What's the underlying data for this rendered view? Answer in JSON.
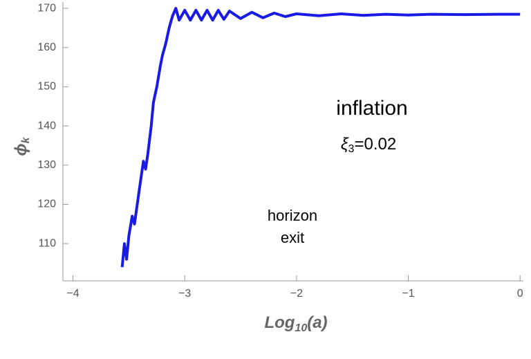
{
  "chart_data": {
    "type": "line",
    "x_label": [
      "Log",
      "10",
      "(a)"
    ],
    "y_label": [
      "ϕ",
      "k"
    ],
    "annotations": {
      "title": "inflation",
      "parameter": [
        "ξ",
        "3",
        "=0.02"
      ],
      "marker": [
        "horizon",
        "exit"
      ]
    },
    "xlim": [
      -4.09,
      0.03
    ],
    "ylim": [
      100.5,
      171.6
    ],
    "xticks": [
      {
        "value": -4,
        "label": "−4"
      },
      {
        "value": -3,
        "label": "−3"
      },
      {
        "value": -2,
        "label": "−2"
      },
      {
        "value": -1,
        "label": "−1"
      },
      0
    ],
    "yticks": [
      110,
      120,
      130,
      140,
      150,
      160,
      170
    ],
    "series": [
      {
        "color": "#1a1ae6",
        "x": [
          -3.56,
          -3.54,
          -3.52,
          -3.5,
          -3.47,
          -3.45,
          -3.42,
          -3.4,
          -3.37,
          -3.35,
          -3.33,
          -3.3,
          -3.28,
          -3.25,
          -3.22,
          -3.2,
          -3.17,
          -3.14,
          -3.11,
          -3.08,
          -3.05,
          -3.0,
          -2.95,
          -2.9,
          -2.85,
          -2.8,
          -2.75,
          -2.7,
          -2.65,
          -2.6,
          -2.5,
          -2.4,
          -2.3,
          -2.2,
          -2.1,
          -2.0,
          -1.8,
          -1.6,
          -1.4,
          -1.2,
          -1.0,
          -0.8,
          -0.5,
          -0.2,
          0
        ],
        "values": [
          104,
          110,
          106,
          112,
          117,
          115,
          121,
          125,
          131,
          129,
          133,
          140,
          146,
          150,
          155,
          158,
          161,
          165,
          168,
          170,
          167,
          169.5,
          167,
          169.5,
          167,
          169.5,
          167,
          169.5,
          167.2,
          169.3,
          167.4,
          169,
          167.6,
          168.8,
          167.9,
          168.6,
          168.1,
          168.6,
          168.2,
          168.5,
          168.3,
          168.5,
          168.4,
          168.5,
          168.5
        ]
      }
    ]
  }
}
